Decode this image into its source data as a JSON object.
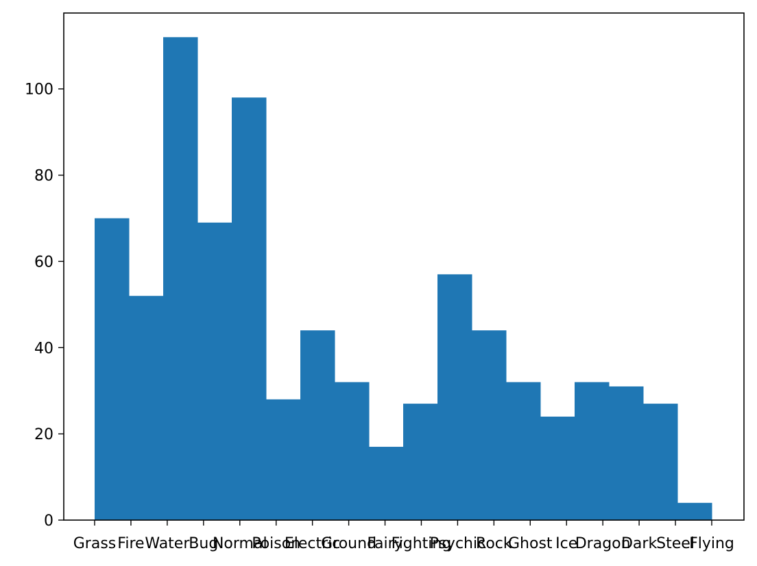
{
  "chart_data": {
    "type": "bar",
    "title": "",
    "xlabel": "",
    "ylabel": "",
    "categories": [
      "Grass",
      "Fire",
      "Water",
      "Bug",
      "Normal",
      "Poison",
      "Electric",
      "Ground",
      "Fairy",
      "Fighting",
      "Psychic",
      "Rock",
      "Ghost",
      "Ice",
      "Dragon",
      "Dark",
      "Steel",
      "Flying"
    ],
    "values": [
      70,
      52,
      112,
      69,
      98,
      28,
      44,
      32,
      17,
      27,
      57,
      44,
      32,
      24,
      32,
      31,
      27,
      4
    ],
    "ylim": [
      0,
      117.6
    ],
    "yticks": [
      0,
      20,
      40,
      60,
      80,
      100
    ],
    "bar_color": "#1f77b4",
    "grid": false,
    "legend": "none"
  }
}
